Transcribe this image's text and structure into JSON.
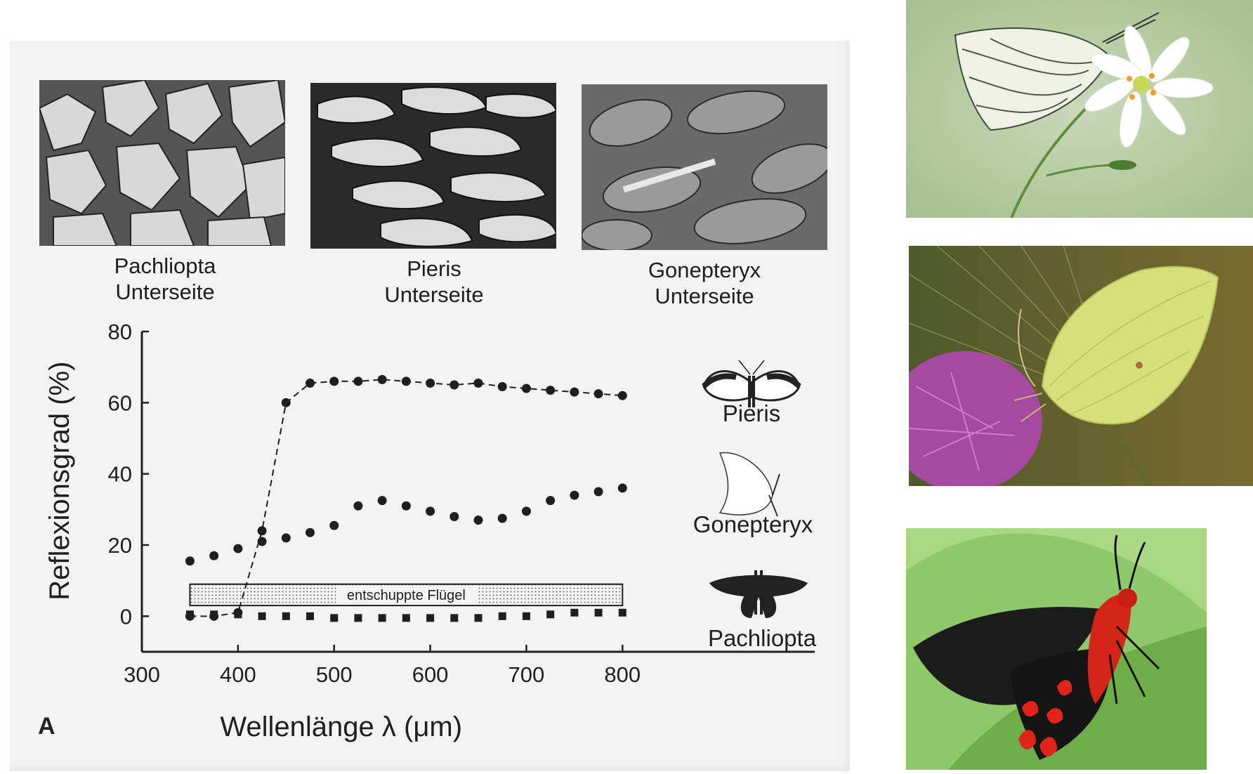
{
  "figure": {
    "panel_letter": "A",
    "sem_captions": [
      {
        "name": "Pachliopta",
        "side": "Unterseite"
      },
      {
        "name": "Pieris",
        "side": "Unterseite"
      },
      {
        "name": "Gonepteryx",
        "side": "Unterseite"
      }
    ]
  },
  "chart_data": {
    "type": "scatter",
    "title": "",
    "xlabel": "Wellenlänge λ (μm)",
    "ylabel": "Reflexionsgrad (%)",
    "xlim": [
      300,
      1000
    ],
    "ylim": [
      -10,
      80
    ],
    "xticks": [
      300,
      400,
      500,
      600,
      700,
      800
    ],
    "yticks": [
      0,
      20,
      40,
      60,
      80
    ],
    "grid": false,
    "band": {
      "label": "entschuppte Flügel",
      "x": [
        350,
        800
      ],
      "y": [
        3,
        9
      ]
    },
    "series": [
      {
        "name": "Pieris",
        "marker": "circle",
        "line": "dashed",
        "x": [
          350,
          375,
          400,
          425,
          450,
          475,
          500,
          525,
          550,
          575,
          600,
          625,
          650,
          675,
          700,
          725,
          750,
          775,
          800
        ],
        "y": [
          0,
          0,
          1,
          24,
          60,
          65.5,
          66,
          66,
          66.5,
          66,
          65.5,
          65,
          65.5,
          64.5,
          64,
          63.5,
          63,
          62.5,
          62
        ]
      },
      {
        "name": "Gonepteryx",
        "marker": "circle",
        "line": "none",
        "x": [
          350,
          375,
          400,
          425,
          450,
          475,
          500,
          525,
          550,
          575,
          600,
          625,
          650,
          675,
          700,
          725,
          750,
          775,
          800
        ],
        "y": [
          15.5,
          17,
          19,
          21,
          22,
          23.5,
          25.5,
          31,
          32.5,
          31,
          29.5,
          28,
          27,
          27.5,
          29.5,
          32.5,
          34,
          35,
          36
        ]
      },
      {
        "name": "Pachliopta",
        "marker": "square",
        "line": "none",
        "x": [
          350,
          375,
          400,
          425,
          450,
          475,
          500,
          525,
          550,
          575,
          600,
          625,
          650,
          675,
          700,
          725,
          750,
          775,
          800
        ],
        "y": [
          0.5,
          0.5,
          0.5,
          0,
          0,
          0,
          -0.5,
          -0.5,
          -0.5,
          -0.5,
          -0.5,
          -0.5,
          -0.5,
          0,
          0,
          0.5,
          1,
          1,
          1
        ]
      }
    ]
  },
  "colors": {
    "ink": "#1f1f1f",
    "panel": "#f6f6f6"
  },
  "photos": [
    {
      "subject": "white butterfly on white flower",
      "icon": "pieris-photo"
    },
    {
      "subject": "yellow brimstone butterfly on purple thistle",
      "icon": "gonepteryx-photo"
    },
    {
      "subject": "black and red butterfly on green leaf",
      "icon": "pachliopta-photo"
    }
  ]
}
